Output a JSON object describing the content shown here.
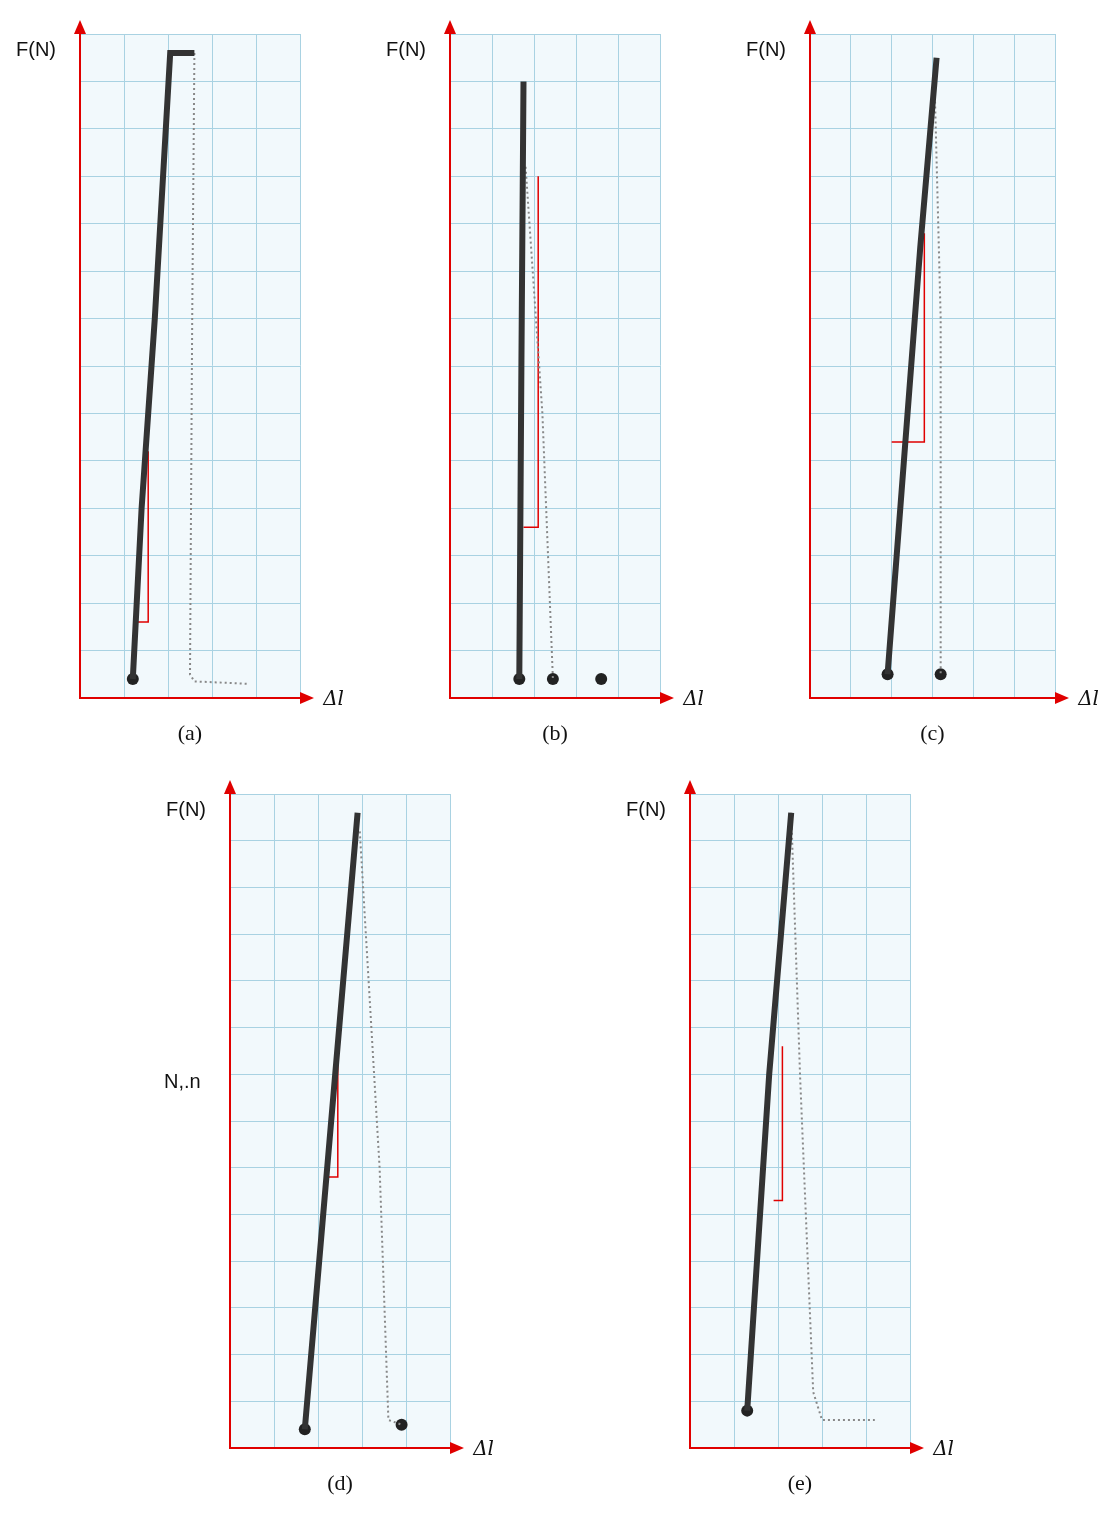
{
  "chart_data": [
    {
      "type": "scatter",
      "title": "(a)",
      "y_label": "F(N)",
      "x_label": "Δl",
      "xlim": [
        0,
        5
      ],
      "ylim": [
        0,
        14
      ],
      "xticks": [
        0,
        1,
        2,
        3,
        4,
        5
      ],
      "yticks": [
        0,
        1,
        2,
        3,
        4,
        5,
        6,
        7,
        8,
        9,
        10,
        11,
        12,
        13,
        14
      ],
      "grid": true,
      "tick_labels": false,
      "series": [
        {
          "color": "#333333",
          "line_style": "thick",
          "x": [
            1.2,
            1.4,
            1.7,
            1.95,
            2.05,
            2.6
          ],
          "values": [
            0.4,
            4.0,
            8.0,
            12.0,
            13.6,
            13.6
          ]
        },
        {
          "color": "#888888",
          "line_style": "dotted",
          "x": [
            2.6,
            2.55,
            2.5,
            2.6,
            3.8
          ],
          "values": [
            13.6,
            8.0,
            0.5,
            0.35,
            0.3
          ]
        },
        {
          "color": "#e00000",
          "line_style": "thin",
          "x": [
            1.3,
            1.55,
            1.55
          ],
          "values": [
            1.6,
            1.6,
            5.2
          ]
        },
        {
          "color": "#222222",
          "marker": "circle",
          "line_style": "none",
          "x": [
            1.2
          ],
          "values": [
            0.4
          ]
        }
      ]
    },
    {
      "type": "scatter",
      "title": "(b)",
      "y_label": "F(N)",
      "x_label": "Δl",
      "xlim": [
        0,
        5
      ],
      "ylim": [
        0,
        14
      ],
      "xticks": [
        0,
        1,
        2,
        3,
        4,
        5
      ],
      "yticks": [
        0,
        1,
        2,
        3,
        4,
        5,
        6,
        7,
        8,
        9,
        10,
        11,
        12,
        13,
        14
      ],
      "grid": true,
      "tick_labels": false,
      "series": [
        {
          "color": "#333333",
          "line_style": "thick",
          "x": [
            1.65,
            1.7,
            1.75
          ],
          "values": [
            0.4,
            7.0,
            13.0
          ]
        },
        {
          "color": "#888888",
          "line_style": "dotted",
          "x": [
            1.8,
            2.2,
            2.45
          ],
          "values": [
            11.2,
            6.0,
            0.4
          ]
        },
        {
          "color": "#e00000",
          "line_style": "thin",
          "x": [
            1.75,
            2.1,
            2.1
          ],
          "values": [
            3.6,
            3.6,
            11.0
          ]
        },
        {
          "color": "#222222",
          "marker": "circle",
          "line_style": "none",
          "x": [
            1.65,
            2.45,
            3.6
          ],
          "values": [
            0.4,
            0.4,
            0.4
          ]
        }
      ]
    },
    {
      "type": "scatter",
      "title": "(c)",
      "y_label": "F(N)",
      "x_label": "Δl",
      "xlim": [
        0,
        6
      ],
      "ylim": [
        0,
        14
      ],
      "xticks": [
        0,
        1,
        2,
        3,
        4,
        5,
        6
      ],
      "yticks": [
        0,
        1,
        2,
        3,
        4,
        5,
        6,
        7,
        8,
        9,
        10,
        11,
        12,
        13,
        14
      ],
      "grid": true,
      "tick_labels": false,
      "series": [
        {
          "color": "#333333",
          "line_style": "thick",
          "x": [
            1.9,
            2.3,
            2.7,
            3.1
          ],
          "values": [
            0.5,
            5.0,
            9.5,
            13.5
          ]
        },
        {
          "color": "#888888",
          "line_style": "dotted",
          "x": [
            3.05,
            3.2,
            3.2
          ],
          "values": [
            13.0,
            8.0,
            0.5
          ]
        },
        {
          "color": "#e00000",
          "line_style": "thin",
          "x": [
            2.0,
            2.8,
            2.8
          ],
          "values": [
            5.4,
            5.4,
            9.8
          ]
        },
        {
          "color": "#222222",
          "marker": "circle",
          "line_style": "none",
          "x": [
            1.9,
            3.2
          ],
          "values": [
            0.5,
            0.5
          ]
        }
      ]
    },
    {
      "type": "scatter",
      "title": "(d)",
      "y_label": "F(N)",
      "x_label": "Δl",
      "annotation": "N,.n",
      "xlim": [
        0,
        5
      ],
      "ylim": [
        0,
        14
      ],
      "xticks": [
        0,
        1,
        2,
        3,
        4,
        5
      ],
      "yticks": [
        0,
        1,
        2,
        3,
        4,
        5,
        6,
        7,
        8,
        9,
        10,
        11,
        12,
        13,
        14
      ],
      "grid": true,
      "tick_labels": false,
      "series": [
        {
          "color": "#333333",
          "line_style": "thick",
          "x": [
            1.7,
            2.1,
            2.5,
            2.9
          ],
          "values": [
            0.4,
            4.8,
            9.2,
            13.6
          ]
        },
        {
          "color": "#888888",
          "line_style": "dotted",
          "x": [
            2.95,
            3.4,
            3.6,
            3.9
          ],
          "values": [
            13.2,
            6.0,
            0.6,
            0.5
          ]
        },
        {
          "color": "#e00000",
          "line_style": "thin",
          "x": [
            2.2,
            2.45,
            2.45
          ],
          "values": [
            5.8,
            5.8,
            8.8
          ]
        },
        {
          "color": "#222222",
          "marker": "circle",
          "line_style": "none",
          "x": [
            1.7,
            3.9
          ],
          "values": [
            0.4,
            0.5
          ]
        }
      ]
    },
    {
      "type": "scatter",
      "title": "(e)",
      "y_label": "F(N)",
      "x_label": "Δl",
      "xlim": [
        0,
        5
      ],
      "ylim": [
        0,
        14
      ],
      "xticks": [
        0,
        1,
        2,
        3,
        4,
        5
      ],
      "yticks": [
        0,
        1,
        2,
        3,
        4,
        5,
        6,
        7,
        8,
        9,
        10,
        11,
        12,
        13,
        14
      ],
      "grid": true,
      "tick_labels": false,
      "series": [
        {
          "color": "#333333",
          "line_style": "thick",
          "x": [
            1.3,
            1.8,
            2.3
          ],
          "values": [
            0.8,
            8.0,
            13.6
          ]
        },
        {
          "color": "#888888",
          "line_style": "dotted",
          "x": [
            2.3,
            2.5,
            2.8,
            3.0,
            4.2
          ],
          "values": [
            13.6,
            8.0,
            1.2,
            0.6,
            0.6
          ]
        },
        {
          "color": "#e00000",
          "line_style": "thin",
          "x": [
            1.9,
            2.1,
            2.1
          ],
          "values": [
            5.3,
            5.3,
            8.6
          ]
        },
        {
          "color": "#222222",
          "marker": "circle",
          "line_style": "none",
          "x": [
            1.3
          ],
          "values": [
            0.8
          ]
        }
      ]
    }
  ]
}
